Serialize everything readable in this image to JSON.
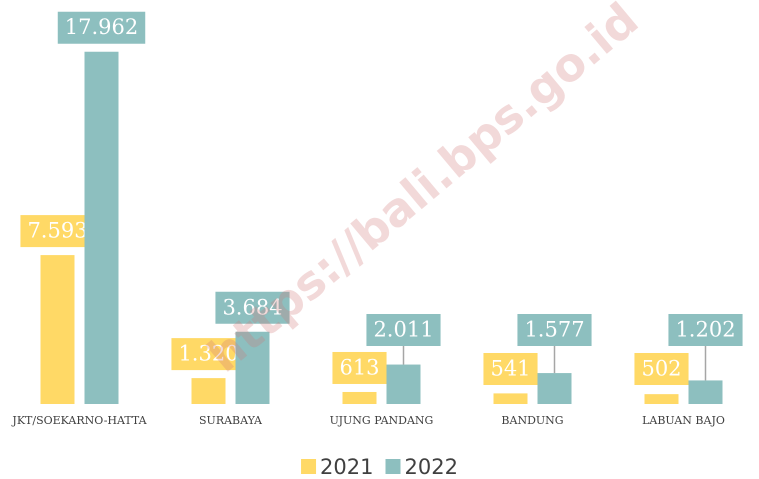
{
  "chart_data": {
    "type": "bar",
    "categories": [
      "JKT/SOEKARNO-HATTA",
      "SURABAYA",
      "UJUNG PANDANG",
      "BANDUNG",
      "LABUAN BAJO"
    ],
    "series": [
      {
        "name": "2021",
        "color": "#ffd966",
        "values": [
          7593,
          1320,
          613,
          541,
          502
        ],
        "value_labels": [
          "7.593",
          "1.320",
          "613",
          "541",
          "502"
        ]
      },
      {
        "name": "2022",
        "color": "#8dbfbf",
        "values": [
          17962,
          3684,
          2011,
          1577,
          1202
        ],
        "value_labels": [
          "17.962",
          "3.684",
          "2.011",
          "1.577",
          "1.202"
        ]
      }
    ],
    "ylim": [
      0,
      18000
    ],
    "legend": "bottom",
    "watermark": "https://bali.bps.go.id"
  }
}
